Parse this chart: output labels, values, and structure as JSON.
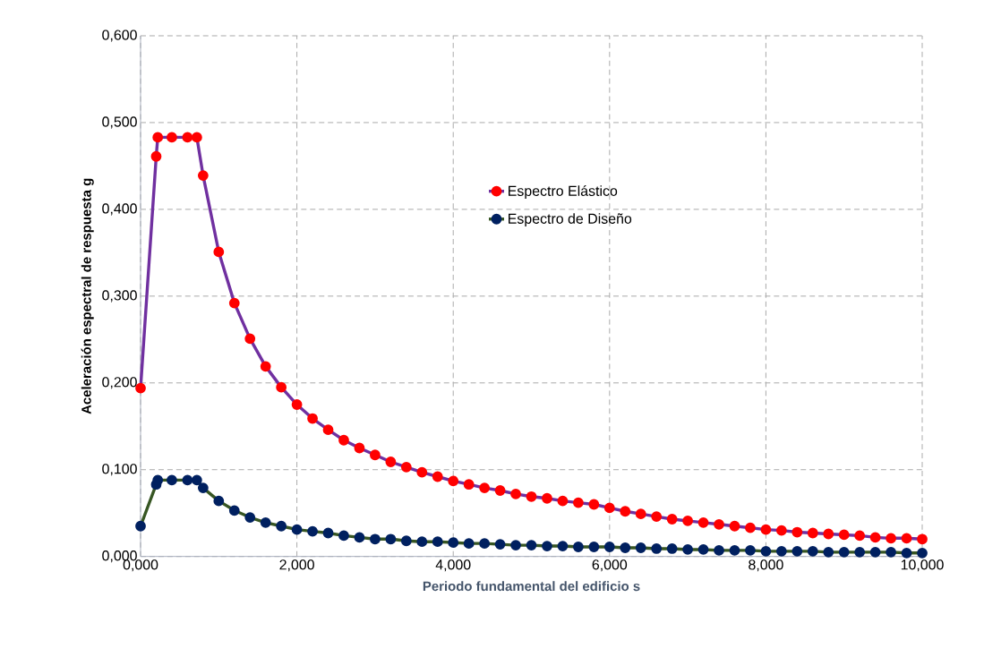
{
  "chart_data": {
    "type": "line",
    "xlabel": "Periodo fundamental del edificio s",
    "ylabel": "Aceleración espectral de respuesta g",
    "x": [
      0,
      0.2,
      0.22,
      0.4,
      0.6,
      0.72,
      0.8,
      1.0,
      1.2,
      1.4,
      1.6,
      1.8,
      2.0,
      2.2,
      2.4,
      2.6,
      2.8,
      3.0,
      3.2,
      3.4,
      3.6,
      3.8,
      4.0,
      4.2,
      4.4,
      4.6,
      4.8,
      5.0,
      5.2,
      5.4,
      5.6,
      5.8,
      6.0,
      6.2,
      6.4,
      6.6,
      6.8,
      7.0,
      7.2,
      7.4,
      7.6,
      7.8,
      8.0,
      8.2,
      8.4,
      8.6,
      8.8,
      9.0,
      9.2,
      9.4,
      9.6,
      9.8,
      10.0
    ],
    "series": [
      {
        "name": "Espectro Elástico",
        "color": "#7030a0",
        "values": [
          0.194,
          0.461,
          0.483,
          0.483,
          0.483,
          0.483,
          0.439,
          0.351,
          0.292,
          0.251,
          0.219,
          0.195,
          0.175,
          0.159,
          0.146,
          0.134,
          0.125,
          0.117,
          0.109,
          0.103,
          0.097,
          0.092,
          0.087,
          0.083,
          0.079,
          0.076,
          0.072,
          0.069,
          0.067,
          0.064,
          0.062,
          0.06,
          0.056,
          0.052,
          0.049,
          0.046,
          0.043,
          0.041,
          0.039,
          0.037,
          0.035,
          0.033,
          0.031,
          0.03,
          0.028,
          0.027,
          0.026,
          0.025,
          0.024,
          0.022,
          0.021,
          0.021,
          0.02
        ]
      },
      {
        "name": "Espectro de Diseño",
        "color": "#375623",
        "values": [
          0.035,
          0.083,
          0.088,
          0.088,
          0.088,
          0.088,
          0.079,
          0.064,
          0.053,
          0.045,
          0.039,
          0.035,
          0.031,
          0.029,
          0.027,
          0.024,
          0.022,
          0.02,
          0.02,
          0.018,
          0.017,
          0.017,
          0.016,
          0.015,
          0.015,
          0.014,
          0.013,
          0.013,
          0.012,
          0.012,
          0.011,
          0.011,
          0.011,
          0.01,
          0.01,
          0.009,
          0.009,
          0.008,
          0.008,
          0.007,
          0.007,
          0.007,
          0.006,
          0.006,
          0.006,
          0.006,
          0.005,
          0.005,
          0.005,
          0.005,
          0.005,
          0.004,
          0.004
        ]
      }
    ],
    "xlim": [
      0,
      10
    ],
    "xticks": [
      {
        "value": 0,
        "label": "0,000"
      },
      {
        "value": 2,
        "label": "2,000"
      },
      {
        "value": 4,
        "label": "4,000"
      },
      {
        "value": 6,
        "label": "6,000"
      },
      {
        "value": 8,
        "label": "8,000"
      },
      {
        "value": 10,
        "label": "10,000"
      }
    ],
    "ylim": [
      0,
      0.6
    ],
    "yticks": [
      {
        "value": 0,
        "label": "0,000"
      },
      {
        "value": 0.1,
        "label": "0,100"
      },
      {
        "value": 0.2,
        "label": "0,200"
      },
      {
        "value": 0.3,
        "label": "0,300"
      },
      {
        "value": 0.4,
        "label": "0,400"
      },
      {
        "value": 0.5,
        "label": "0,500"
      },
      {
        "value": 0.6,
        "label": "0,600"
      }
    ],
    "grid": true,
    "legend": "center",
    "marker": "circle",
    "line_style": "solid"
  }
}
